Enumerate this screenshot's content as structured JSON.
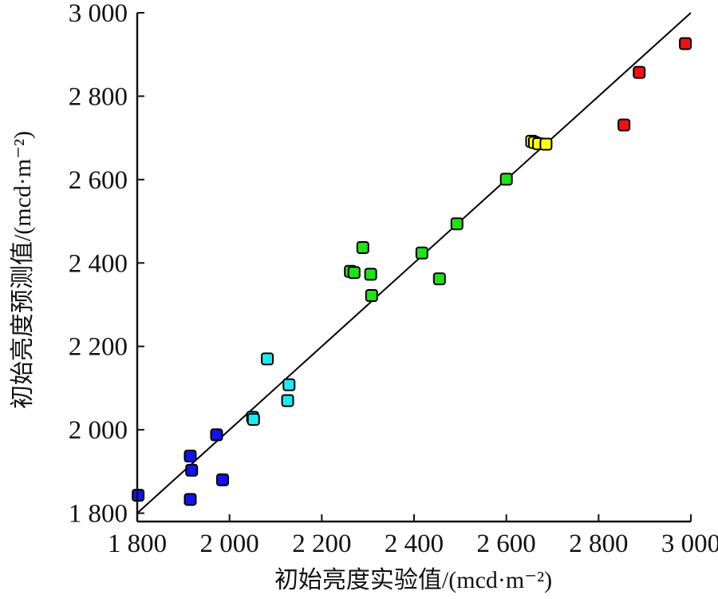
{
  "chart_data": {
    "type": "scatter",
    "xlabel": "初始亮度实验值/(mcd·m⁻²)",
    "ylabel": "初始亮度预测值/(mcd·m⁻²)",
    "xlim": [
      1800,
      3000
    ],
    "ylim": [
      1780,
      3000
    ],
    "x_ticks": [
      1800,
      2000,
      2200,
      2400,
      2600,
      2800,
      3000
    ],
    "x_tick_labels": [
      "1 800",
      "2 000",
      "2 200",
      "2 400",
      "2 600",
      "2 800",
      "3 000"
    ],
    "y_ticks": [
      1800,
      2000,
      2200,
      2400,
      2600,
      2800,
      3000
    ],
    "y_tick_labels": [
      "1 800",
      "2 000",
      "2 200",
      "2 400",
      "2 600",
      "2 800",
      "3 000"
    ],
    "reference_line": {
      "from": [
        1800,
        1800
      ],
      "to": [
        3000,
        3000
      ]
    },
    "grid": false,
    "legend": "none",
    "colors": {
      "blue": "#1414e6",
      "cyan": "#20e8ee",
      "green": "#22e01a",
      "yellow": "#ffff22",
      "red": "#ee1212"
    },
    "series": [
      {
        "color": "blue",
        "points": [
          [
            1802,
            1843
          ],
          [
            1915,
            1937
          ],
          [
            1918,
            1903
          ],
          [
            1915,
            1833
          ],
          [
            1972,
            1988
          ],
          [
            1985,
            1880
          ]
        ]
      },
      {
        "color": "cyan",
        "points": [
          [
            2050,
            2030
          ],
          [
            2052,
            2025
          ],
          [
            2082,
            2170
          ],
          [
            2126,
            2070
          ],
          [
            2129,
            2108
          ]
        ]
      },
      {
        "color": "green",
        "points": [
          [
            2262,
            2380
          ],
          [
            2270,
            2377
          ],
          [
            2289,
            2437
          ],
          [
            2306,
            2373
          ],
          [
            2308,
            2322
          ],
          [
            2417,
            2424
          ],
          [
            2455,
            2362
          ],
          [
            2493,
            2494
          ],
          [
            2600,
            2601
          ]
        ]
      },
      {
        "color": "yellow",
        "points": [
          [
            2655,
            2692
          ],
          [
            2661,
            2689
          ],
          [
            2670,
            2686
          ],
          [
            2686,
            2685
          ]
        ]
      },
      {
        "color": "red",
        "points": [
          [
            2855,
            2731
          ],
          [
            2888,
            2857
          ],
          [
            2988,
            2926
          ]
        ]
      }
    ]
  }
}
